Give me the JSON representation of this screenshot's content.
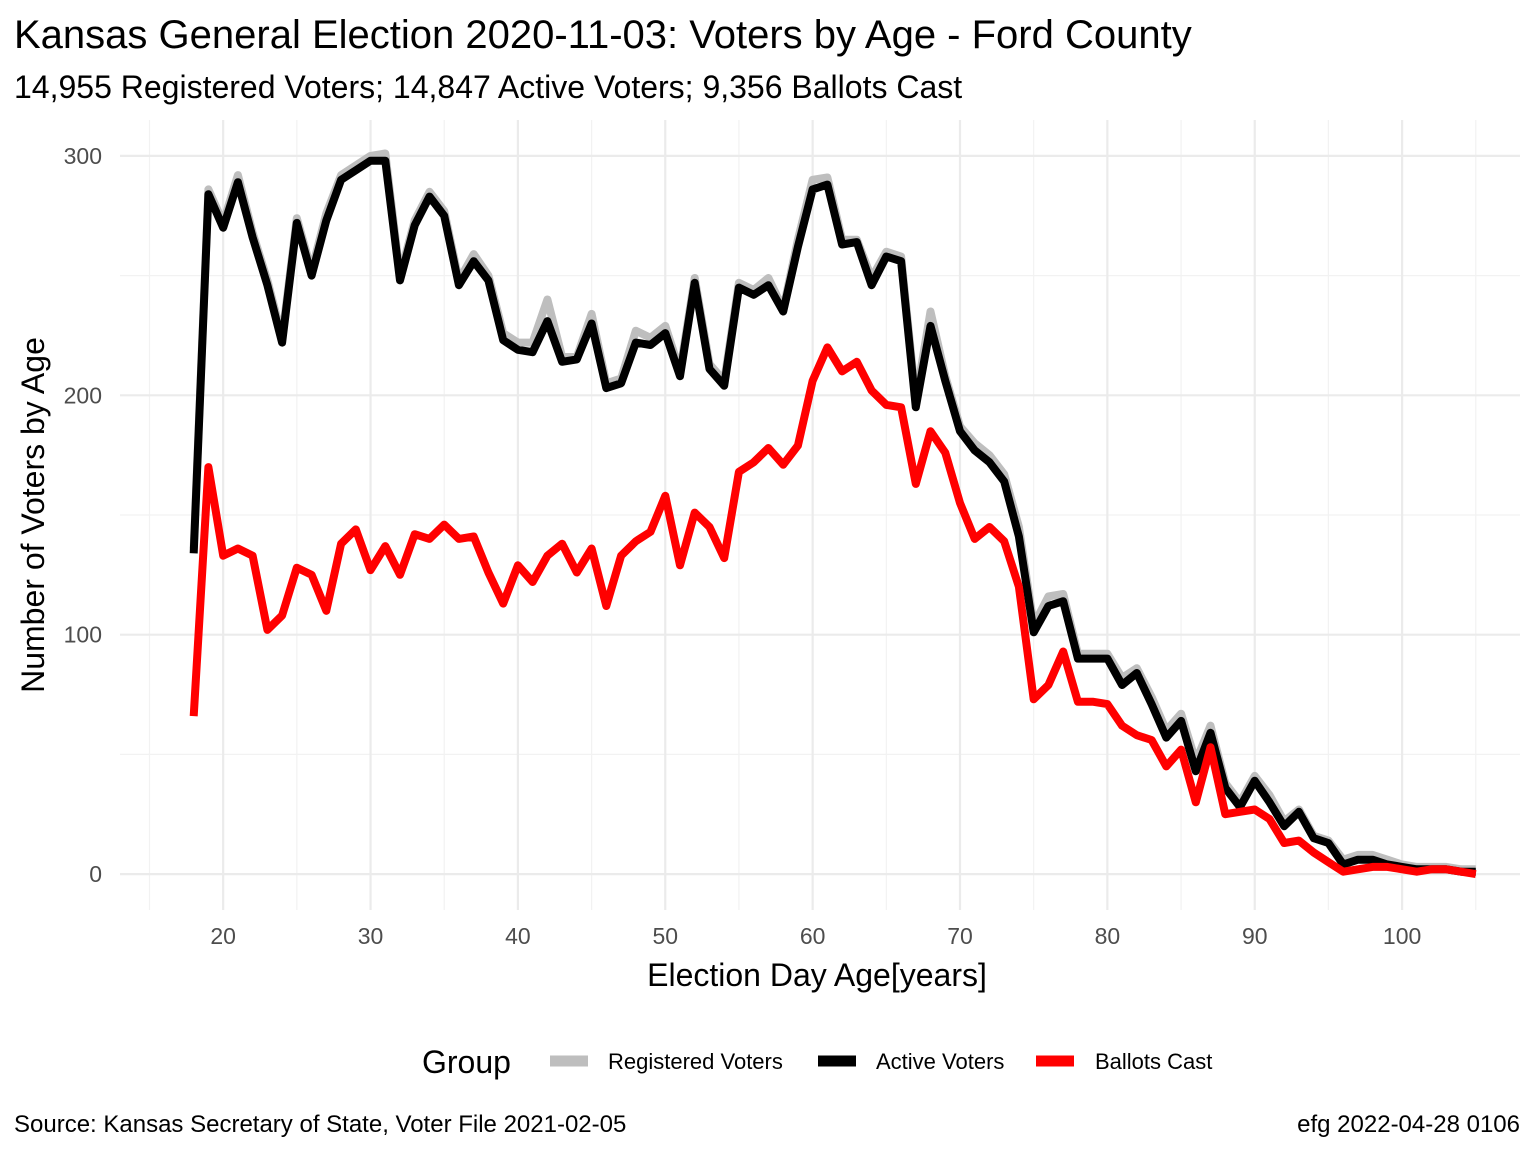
{
  "chart_data": {
    "type": "line",
    "title": "Kansas General Election 2020-11-03:  Voters by Age - Ford County",
    "subtitle": "14,955 Registered Voters; 14,847 Active Voters; 9,356 Ballots Cast",
    "xlabel": "Election Day Age[years]",
    "ylabel": "Number of Voters by Age",
    "xlim": [
      13,
      108
    ],
    "ylim": [
      -15,
      315
    ],
    "x_ticks": [
      20,
      30,
      40,
      50,
      60,
      70,
      80,
      90,
      100
    ],
    "y_ticks": [
      0,
      100,
      200,
      300
    ],
    "grid": true,
    "legend": {
      "title": "Group",
      "position": "bottom"
    },
    "x": [
      18,
      19,
      20,
      21,
      22,
      23,
      24,
      25,
      26,
      27,
      28,
      29,
      30,
      31,
      32,
      33,
      34,
      35,
      36,
      37,
      38,
      39,
      40,
      41,
      42,
      43,
      44,
      45,
      46,
      47,
      48,
      49,
      50,
      51,
      52,
      53,
      54,
      55,
      56,
      57,
      58,
      59,
      60,
      61,
      62,
      63,
      64,
      65,
      66,
      67,
      68,
      69,
      70,
      71,
      72,
      73,
      74,
      75,
      76,
      77,
      78,
      79,
      80,
      81,
      82,
      83,
      84,
      85,
      86,
      87,
      88,
      89,
      90,
      91,
      92,
      93,
      94,
      95,
      96,
      97,
      98,
      99,
      100,
      101,
      102,
      103,
      104,
      105
    ],
    "series": [
      {
        "name": "Registered Voters",
        "color": "#bebebe",
        "values": [
          136,
          286,
          272,
          292,
          268,
          248,
          224,
          274,
          252,
          276,
          292,
          296,
          300,
          301,
          250,
          273,
          285,
          277,
          248,
          259,
          250,
          226,
          222,
          222,
          240,
          216,
          216,
          234,
          205,
          207,
          227,
          224,
          229,
          210,
          249,
          213,
          206,
          247,
          244,
          249,
          236,
          265,
          290,
          291,
          265,
          265,
          249,
          260,
          258,
          198,
          235,
          208,
          187,
          180,
          175,
          167,
          145,
          104,
          116,
          117,
          92,
          92,
          92,
          82,
          86,
          74,
          60,
          67,
          47,
          62,
          38,
          30,
          41,
          33,
          22,
          27,
          16,
          14,
          6,
          8,
          8,
          6,
          4,
          3,
          3,
          3,
          2,
          2
        ],
        "line_width": 8
      },
      {
        "name": "Active Voters",
        "color": "#000000",
        "values": [
          134,
          284,
          270,
          289,
          266,
          246,
          222,
          272,
          250,
          273,
          290,
          294,
          298,
          298,
          248,
          271,
          283,
          275,
          246,
          256,
          248,
          223,
          219,
          218,
          231,
          214,
          215,
          230,
          203,
          205,
          222,
          221,
          226,
          208,
          247,
          211,
          204,
          245,
          242,
          246,
          235,
          262,
          286,
          288,
          263,
          264,
          246,
          258,
          256,
          195,
          229,
          206,
          185,
          177,
          172,
          164,
          141,
          101,
          112,
          114,
          90,
          90,
          90,
          79,
          84,
          71,
          57,
          64,
          43,
          59,
          36,
          28,
          39,
          30,
          20,
          26,
          15,
          13,
          4,
          6,
          6,
          4,
          3,
          2,
          2,
          2,
          1,
          1
        ]
      },
      {
        "name": "Ballots Cast",
        "color": "#ff0000",
        "values": [
          66,
          170,
          133,
          136,
          133,
          102,
          108,
          128,
          125,
          110,
          138,
          144,
          127,
          137,
          125,
          142,
          140,
          146,
          140,
          141,
          126,
          113,
          129,
          122,
          133,
          138,
          126,
          136,
          112,
          133,
          139,
          143,
          158,
          129,
          151,
          145,
          132,
          168,
          172,
          178,
          171,
          179,
          206,
          220,
          210,
          214,
          202,
          196,
          195,
          163,
          185,
          176,
          155,
          140,
          145,
          139,
          120,
          73,
          79,
          93,
          72,
          72,
          71,
          62,
          58,
          56,
          45,
          52,
          30,
          53,
          25,
          26,
          27,
          23,
          13,
          14,
          9,
          5,
          1,
          2,
          3,
          3,
          2,
          1,
          2,
          2,
          1,
          0
        ]
      }
    ],
    "caption_left": "Source:  Kansas Secretary of State, Voter File  2021-02-05",
    "caption_right": "efg 2022-04-28 0106"
  }
}
